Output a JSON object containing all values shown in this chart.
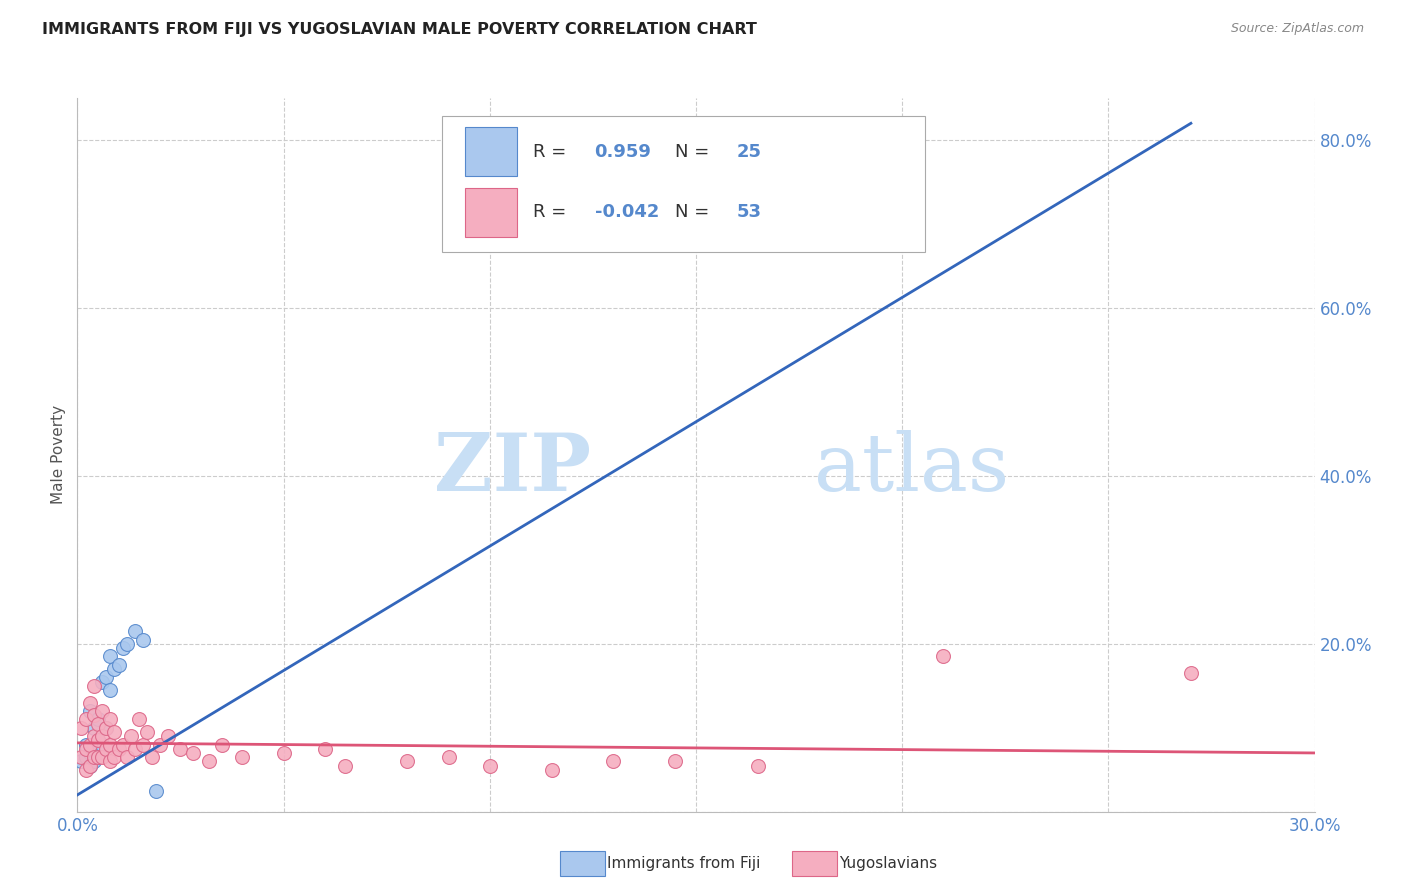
{
  "title": "IMMIGRANTS FROM FIJI VS YUGOSLAVIAN MALE POVERTY CORRELATION CHART",
  "source": "Source: ZipAtlas.com",
  "ylabel_label": "Male Poverty",
  "xlim": [
    0.0,
    0.3
  ],
  "ylim": [
    0.0,
    0.85
  ],
  "xtick_positions": [
    0.0,
    0.05,
    0.1,
    0.15,
    0.2,
    0.25,
    0.3
  ],
  "ytick_positions": [
    0.0,
    0.2,
    0.4,
    0.6,
    0.8
  ],
  "fiji_color": "#aac8ee",
  "fiji_edge_color": "#5588cc",
  "yugo_color": "#f5aec0",
  "yugo_edge_color": "#dd6688",
  "fiji_line_color": "#3366bb",
  "yugo_line_color": "#dd5577",
  "grid_color": "#cccccc",
  "watermark_zip": "ZIP",
  "watermark_atlas": "atlas",
  "watermark_color": "#c8dff5",
  "tick_color": "#5588cc",
  "legend_label_fiji": "Immigrants from Fiji",
  "legend_label_yugo": "Yugoslavians",
  "legend_r_fiji": "0.959",
  "legend_n_fiji": "25",
  "legend_r_yugo": "-0.042",
  "legend_n_yugo": "53",
  "fiji_scatter_x": [
    0.001,
    0.002,
    0.002,
    0.003,
    0.003,
    0.003,
    0.004,
    0.004,
    0.004,
    0.005,
    0.005,
    0.005,
    0.006,
    0.006,
    0.007,
    0.007,
    0.008,
    0.008,
    0.009,
    0.01,
    0.011,
    0.012,
    0.014,
    0.016,
    0.019
  ],
  "fiji_scatter_y": [
    0.06,
    0.065,
    0.08,
    0.055,
    0.07,
    0.12,
    0.06,
    0.08,
    0.1,
    0.065,
    0.085,
    0.11,
    0.08,
    0.155,
    0.1,
    0.16,
    0.145,
    0.185,
    0.17,
    0.175,
    0.195,
    0.2,
    0.215,
    0.205,
    0.025
  ],
  "yugo_scatter_x": [
    0.001,
    0.001,
    0.002,
    0.002,
    0.002,
    0.003,
    0.003,
    0.003,
    0.004,
    0.004,
    0.004,
    0.004,
    0.005,
    0.005,
    0.005,
    0.006,
    0.006,
    0.006,
    0.007,
    0.007,
    0.008,
    0.008,
    0.008,
    0.009,
    0.009,
    0.01,
    0.011,
    0.012,
    0.013,
    0.014,
    0.015,
    0.016,
    0.017,
    0.018,
    0.02,
    0.022,
    0.025,
    0.028,
    0.032,
    0.035,
    0.04,
    0.05,
    0.06,
    0.065,
    0.08,
    0.09,
    0.1,
    0.115,
    0.13,
    0.145,
    0.165,
    0.21,
    0.27
  ],
  "yugo_scatter_y": [
    0.065,
    0.1,
    0.05,
    0.075,
    0.11,
    0.055,
    0.08,
    0.13,
    0.065,
    0.09,
    0.115,
    0.15,
    0.065,
    0.085,
    0.105,
    0.065,
    0.09,
    0.12,
    0.075,
    0.1,
    0.06,
    0.08,
    0.11,
    0.065,
    0.095,
    0.075,
    0.08,
    0.065,
    0.09,
    0.075,
    0.11,
    0.08,
    0.095,
    0.065,
    0.08,
    0.09,
    0.075,
    0.07,
    0.06,
    0.08,
    0.065,
    0.07,
    0.075,
    0.055,
    0.06,
    0.065,
    0.055,
    0.05,
    0.06,
    0.06,
    0.055,
    0.185,
    0.165
  ],
  "fiji_line_x": [
    0.0,
    0.27
  ],
  "fiji_line_y": [
    0.02,
    0.82
  ],
  "yugo_line_x": [
    0.0,
    0.3
  ],
  "yugo_line_y": [
    0.082,
    0.07
  ]
}
